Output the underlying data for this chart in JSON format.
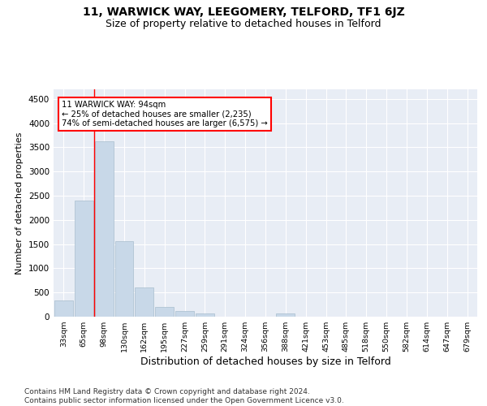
{
  "title1": "11, WARWICK WAY, LEEGOMERY, TELFORD, TF1 6JZ",
  "title2": "Size of property relative to detached houses in Telford",
  "xlabel": "Distribution of detached houses by size in Telford",
  "ylabel": "Number of detached properties",
  "footer": "Contains HM Land Registry data © Crown copyright and database right 2024.\nContains public sector information licensed under the Open Government Licence v3.0.",
  "categories": [
    "33sqm",
    "65sqm",
    "98sqm",
    "130sqm",
    "162sqm",
    "195sqm",
    "227sqm",
    "259sqm",
    "291sqm",
    "324sqm",
    "356sqm",
    "388sqm",
    "421sqm",
    "453sqm",
    "485sqm",
    "518sqm",
    "550sqm",
    "582sqm",
    "614sqm",
    "647sqm",
    "679sqm"
  ],
  "values": [
    330,
    2400,
    3620,
    1560,
    600,
    200,
    110,
    70,
    0,
    0,
    0,
    60,
    0,
    0,
    0,
    0,
    0,
    0,
    0,
    0,
    0
  ],
  "bar_color": "#c8d8e8",
  "bar_edge_color": "#a8bece",
  "red_line_x": 1.5,
  "annotation_text": "11 WARWICK WAY: 94sqm\n← 25% of detached houses are smaller (2,235)\n74% of semi-detached houses are larger (6,575) →",
  "annotation_box_color": "white",
  "annotation_box_edge_color": "red",
  "ylim": [
    0,
    4700
  ],
  "yticks": [
    0,
    500,
    1000,
    1500,
    2000,
    2500,
    3000,
    3500,
    4000,
    4500
  ],
  "background_color": "#e8edf5",
  "title1_fontsize": 10,
  "title2_fontsize": 9,
  "xlabel_fontsize": 9,
  "ylabel_fontsize": 8,
  "footer_fontsize": 6.5
}
